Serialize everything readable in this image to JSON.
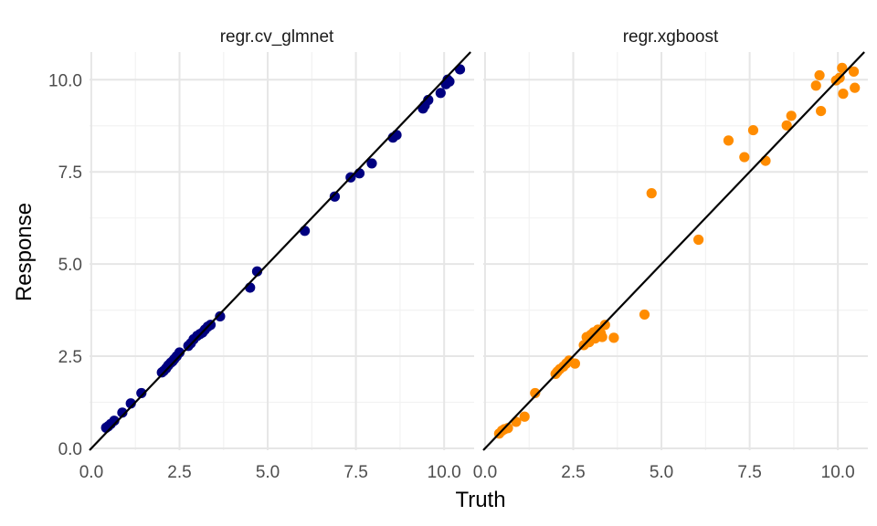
{
  "chart_data": {
    "type": "scatter",
    "xlabel": "Truth",
    "ylabel": "Response",
    "xlim": [
      -0.05,
      10.85
    ],
    "ylim": [
      -0.05,
      10.75
    ],
    "x_ticks": [
      0.0,
      2.5,
      5.0,
      7.5,
      10.0
    ],
    "x_tick_labels": [
      "0.0",
      "2.5",
      "5.0",
      "7.5",
      "10.0"
    ],
    "y_ticks": [
      0.0,
      2.5,
      5.0,
      7.5,
      10.0
    ],
    "y_tick_labels": [
      "0.0",
      "2.5",
      "5.0",
      "7.5",
      "10.0"
    ],
    "grid": true,
    "reference_line": "y = x",
    "panels": [
      {
        "title": "regr.cv_glmnet",
        "color": "#000080",
        "points": [
          [
            0.42,
            0.56
          ],
          [
            0.48,
            0.6
          ],
          [
            0.55,
            0.66
          ],
          [
            0.65,
            0.75
          ],
          [
            0.88,
            0.97
          ],
          [
            1.12,
            1.22
          ],
          [
            1.42,
            1.5
          ],
          [
            2.0,
            2.06
          ],
          [
            2.05,
            2.1
          ],
          [
            2.12,
            2.17
          ],
          [
            2.18,
            2.25
          ],
          [
            2.25,
            2.32
          ],
          [
            2.3,
            2.36
          ],
          [
            2.35,
            2.42
          ],
          [
            2.42,
            2.5
          ],
          [
            2.5,
            2.6
          ],
          [
            2.75,
            2.78
          ],
          [
            2.82,
            2.85
          ],
          [
            2.9,
            2.96
          ],
          [
            3.0,
            3.05
          ],
          [
            3.08,
            3.1
          ],
          [
            3.15,
            3.14
          ],
          [
            3.22,
            3.22
          ],
          [
            3.3,
            3.3
          ],
          [
            3.38,
            3.35
          ],
          [
            3.65,
            3.58
          ],
          [
            4.5,
            4.36
          ],
          [
            4.7,
            4.8
          ],
          [
            6.05,
            5.9
          ],
          [
            6.9,
            6.83
          ],
          [
            7.35,
            7.35
          ],
          [
            7.6,
            7.46
          ],
          [
            7.95,
            7.73
          ],
          [
            8.55,
            8.43
          ],
          [
            8.65,
            8.5
          ],
          [
            9.4,
            9.22
          ],
          [
            9.45,
            9.3
          ],
          [
            9.55,
            9.45
          ],
          [
            9.9,
            9.64
          ],
          [
            10.05,
            9.88
          ],
          [
            10.1,
            10.0
          ],
          [
            10.15,
            9.95
          ],
          [
            10.45,
            10.28
          ]
        ]
      },
      {
        "title": "regr.xgboost",
        "color": "#FF8C00",
        "points": [
          [
            0.4,
            0.4
          ],
          [
            0.48,
            0.48
          ],
          [
            0.55,
            0.52
          ],
          [
            0.65,
            0.55
          ],
          [
            0.88,
            0.72
          ],
          [
            1.12,
            0.86
          ],
          [
            1.42,
            1.5
          ],
          [
            2.0,
            2.02
          ],
          [
            2.05,
            2.08
          ],
          [
            2.12,
            2.15
          ],
          [
            2.22,
            2.22
          ],
          [
            2.3,
            2.3
          ],
          [
            2.38,
            2.38
          ],
          [
            2.55,
            2.3
          ],
          [
            2.8,
            2.8
          ],
          [
            2.88,
            3.02
          ],
          [
            2.95,
            2.88
          ],
          [
            3.0,
            3.08
          ],
          [
            3.08,
            3.15
          ],
          [
            3.12,
            2.98
          ],
          [
            3.2,
            3.22
          ],
          [
            3.28,
            3.12
          ],
          [
            3.32,
            3.02
          ],
          [
            3.4,
            3.35
          ],
          [
            3.65,
            3.0
          ],
          [
            4.52,
            3.63
          ],
          [
            4.72,
            6.92
          ],
          [
            6.05,
            5.66
          ],
          [
            6.9,
            8.35
          ],
          [
            7.35,
            7.9
          ],
          [
            7.6,
            8.63
          ],
          [
            7.95,
            7.8
          ],
          [
            8.55,
            8.76
          ],
          [
            8.68,
            9.02
          ],
          [
            9.38,
            9.84
          ],
          [
            9.48,
            10.12
          ],
          [
            9.52,
            9.15
          ],
          [
            9.95,
            9.98
          ],
          [
            10.05,
            10.05
          ],
          [
            10.12,
            10.32
          ],
          [
            10.15,
            9.62
          ],
          [
            10.45,
            10.22
          ],
          [
            10.48,
            9.78
          ]
        ]
      }
    ]
  }
}
